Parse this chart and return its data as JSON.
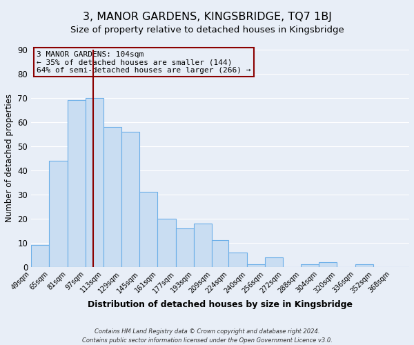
{
  "title": "3, MANOR GARDENS, KINGSBRIDGE, TQ7 1BJ",
  "subtitle": "Size of property relative to detached houses in Kingsbridge",
  "xlabel": "Distribution of detached houses by size in Kingsbridge",
  "ylabel": "Number of detached properties",
  "bin_labels": [
    "49sqm",
    "65sqm",
    "81sqm",
    "97sqm",
    "113sqm",
    "129sqm",
    "145sqm",
    "161sqm",
    "177sqm",
    "193sqm",
    "209sqm",
    "224sqm",
    "240sqm",
    "256sqm",
    "272sqm",
    "288sqm",
    "304sqm",
    "320sqm",
    "336sqm",
    "352sqm",
    "368sqm"
  ],
  "bin_values": [
    9,
    44,
    69,
    70,
    58,
    56,
    31,
    20,
    16,
    18,
    11,
    6,
    1,
    4,
    0,
    1,
    2,
    0,
    1,
    0,
    0
  ],
  "bin_edges": [
    49,
    65,
    81,
    97,
    113,
    129,
    145,
    161,
    177,
    193,
    209,
    224,
    240,
    256,
    272,
    288,
    304,
    320,
    336,
    352,
    368,
    384
  ],
  "bar_color": "#c9ddf2",
  "bar_edge_color": "#6aaee8",
  "vline_x": 104,
  "vline_color": "#8b0000",
  "ylim": [
    0,
    90
  ],
  "yticks": [
    0,
    10,
    20,
    30,
    40,
    50,
    60,
    70,
    80,
    90
  ],
  "annotation_title": "3 MANOR GARDENS: 104sqm",
  "annotation_line1": "← 35% of detached houses are smaller (144)",
  "annotation_line2": "64% of semi-detached houses are larger (266) →",
  "annotation_box_edgecolor": "#8b0000",
  "footer1": "Contains HM Land Registry data © Crown copyright and database right 2024.",
  "footer2": "Contains public sector information licensed under the Open Government Licence v3.0.",
  "fig_bg_color": "#e8eef7",
  "ax_bg_color": "#e8eef7",
  "grid_color": "#ffffff",
  "title_fontsize": 11.5,
  "subtitle_fontsize": 9.5,
  "xlabel_fontsize": 9,
  "ylabel_fontsize": 8.5
}
